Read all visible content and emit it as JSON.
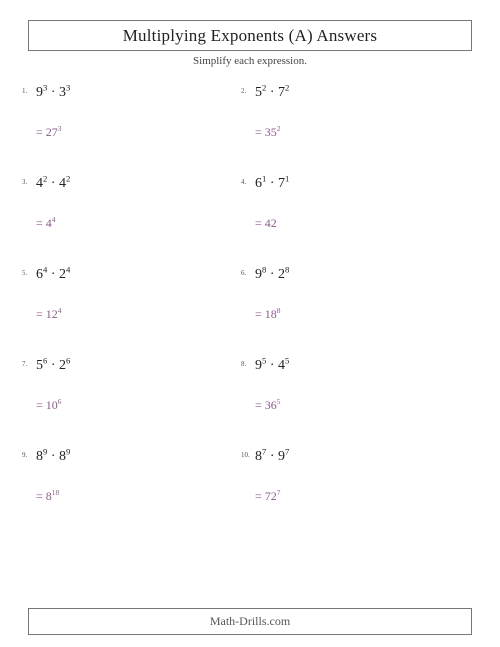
{
  "title": "Multiplying Exponents (A) Answers",
  "subtitle": "Simplify each expression.",
  "footer": "Math-Drills.com",
  "colors": {
    "text": "#222222",
    "answer": "#8b5b8b",
    "border": "#777777",
    "background": "#ffffff"
  },
  "font": {
    "family": "Computer Modern serif",
    "title_size_pt": 17,
    "expr_size_pt": 14,
    "answer_size_pt": 12,
    "subtitle_size_pt": 11
  },
  "layout": {
    "columns": 2,
    "rows": 5
  },
  "problems": [
    {
      "n": "1.",
      "b1": "9",
      "e1": "3",
      "op": "·",
      "b2": "3",
      "e2": "3",
      "ans_prefix": "= ",
      "ab": "27",
      "ae": "3"
    },
    {
      "n": "2.",
      "b1": "5",
      "e1": "2",
      "op": "·",
      "b2": "7",
      "e2": "2",
      "ans_prefix": "= ",
      "ab": "35",
      "ae": "2"
    },
    {
      "n": "3.",
      "b1": "4",
      "e1": "2",
      "op": "·",
      "b2": "4",
      "e2": "2",
      "ans_prefix": "= ",
      "ab": "4",
      "ae": "4"
    },
    {
      "n": "4.",
      "b1": "6",
      "e1": "1",
      "op": "·",
      "b2": "7",
      "e2": "1",
      "ans_prefix": "= ",
      "ab": "42",
      "ae": ""
    },
    {
      "n": "5.",
      "b1": "6",
      "e1": "4",
      "op": "·",
      "b2": "2",
      "e2": "4",
      "ans_prefix": "= ",
      "ab": "12",
      "ae": "4"
    },
    {
      "n": "6.",
      "b1": "9",
      "e1": "8",
      "op": "·",
      "b2": "2",
      "e2": "8",
      "ans_prefix": "= ",
      "ab": "18",
      "ae": "8"
    },
    {
      "n": "7.",
      "b1": "5",
      "e1": "6",
      "op": "·",
      "b2": "2",
      "e2": "6",
      "ans_prefix": "= ",
      "ab": "10",
      "ae": "6"
    },
    {
      "n": "8.",
      "b1": "9",
      "e1": "5",
      "op": "·",
      "b2": "4",
      "e2": "5",
      "ans_prefix": "= ",
      "ab": "36",
      "ae": "5"
    },
    {
      "n": "9.",
      "b1": "8",
      "e1": "9",
      "op": "·",
      "b2": "8",
      "e2": "9",
      "ans_prefix": "= ",
      "ab": "8",
      "ae": "18"
    },
    {
      "n": "10.",
      "b1": "8",
      "e1": "7",
      "op": "·",
      "b2": "9",
      "e2": "7",
      "ans_prefix": "= ",
      "ab": "72",
      "ae": "7"
    }
  ]
}
